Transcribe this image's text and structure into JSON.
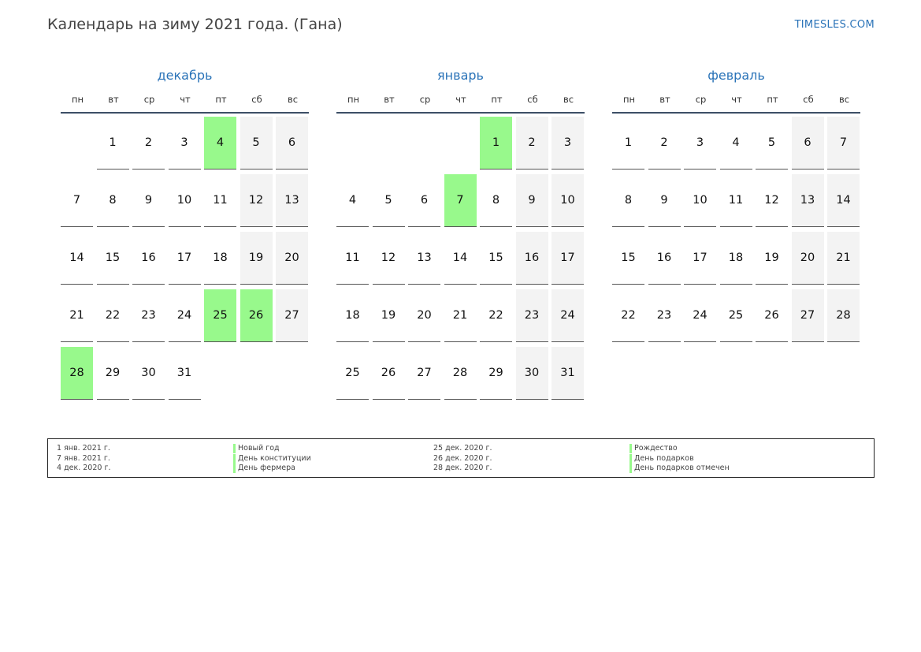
{
  "header": {
    "title": "Календарь на зиму 2021 года. (Гана)",
    "site": "TIMESLES.COM"
  },
  "weekdays": [
    "пн",
    "вт",
    "ср",
    "чт",
    "пт",
    "сб",
    "вс"
  ],
  "months": [
    {
      "name": "декабрь",
      "first_weekday": 1,
      "days_in_month": 31,
      "holidays": [
        4,
        25,
        26,
        28
      ]
    },
    {
      "name": "январь",
      "first_weekday": 4,
      "days_in_month": 31,
      "holidays": [
        1,
        7
      ]
    },
    {
      "name": "февраль",
      "first_weekday": 0,
      "days_in_month": 28,
      "holidays": []
    }
  ],
  "legend": [
    {
      "date": "1 янв. 2021 г.",
      "name": "Новый год"
    },
    {
      "date": "7 янв. 2021 г.",
      "name": "День конституции"
    },
    {
      "date": "4 дек. 2020 г.",
      "name": "День фермера"
    },
    {
      "date": "25 дек. 2020 г.",
      "name": "Рождество"
    },
    {
      "date": "26 дек. 2020 г.",
      "name": "День подарков"
    },
    {
      "date": "28 дек. 2020 г.",
      "name": "День подарков отмечен"
    }
  ],
  "colors": {
    "holiday": "#98f98c",
    "weekend": "#f3f3f3",
    "month_title": "#2a73b8"
  }
}
